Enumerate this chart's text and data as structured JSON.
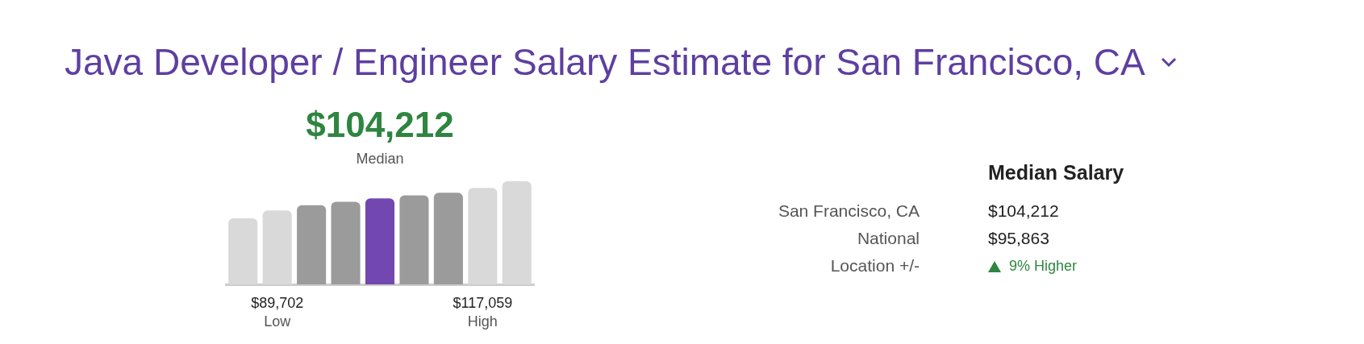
{
  "chart_data": [
    {
      "type": "bar",
      "title": "Java Developer / Engineer Salary Estimate for San Francisco, CA",
      "tick_labels": false,
      "categories": [
        null,
        null,
        null,
        null,
        null,
        null,
        null,
        null,
        null
      ],
      "values": [
        80000,
        89702,
        96000,
        100000,
        104212,
        108000,
        111000,
        117059,
        125000
      ],
      "colors": [
        "#d9d9d9",
        "#d9d9d9",
        "#9b9b9b",
        "#9b9b9b",
        "#7248b0",
        "#9b9b9b",
        "#9b9b9b",
        "#d9d9d9",
        "#d9d9d9"
      ],
      "value_labels": [
        null,
        "$89,702",
        null,
        null,
        "$104,212",
        null,
        null,
        "$117,059",
        null
      ],
      "annotations": [
        "Low",
        "Median",
        "High"
      ]
    },
    {
      "type": "other",
      "title": "Median Salary",
      "annotations": [
        "San Francisco, CA",
        "$104,212",
        "National",
        "$95,863",
        "Location +/-",
        "9% Higher"
      ]
    }
  ]
}
